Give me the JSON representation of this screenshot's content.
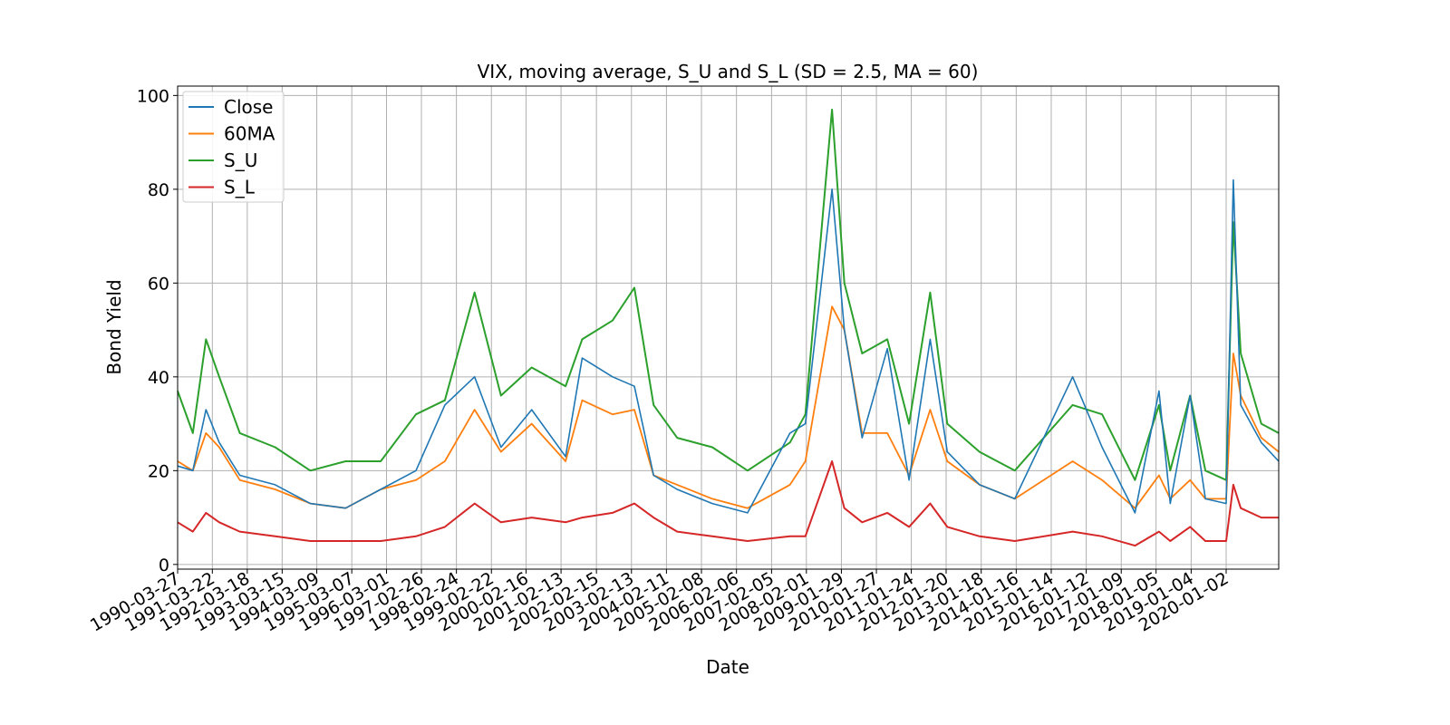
{
  "chart_data": {
    "type": "line",
    "title": "VIX, moving average, S_U and S_L (SD = 2.5, MA = 60)",
    "xlabel": "Date",
    "ylabel": "Bond Yield",
    "x_range": [
      "1990-03-27",
      "2021-06-30"
    ],
    "ylim": [
      -1,
      102
    ],
    "grid": true,
    "legend_position": "top-left",
    "x_ticks": [
      "1990-03-27",
      "1991-03-22",
      "1992-03-18",
      "1993-03-15",
      "1994-03-09",
      "1995-03-07",
      "1996-03-01",
      "1997-02-26",
      "1998-02-24",
      "1999-02-22",
      "2000-02-16",
      "2001-02-13",
      "2002-02-15",
      "2003-02-13",
      "2004-02-11",
      "2005-02-08",
      "2006-02-06",
      "2007-02-05",
      "2008-02-01",
      "2009-01-29",
      "2010-01-27",
      "2011-01-24",
      "2012-01-20",
      "2013-01-18",
      "2014-01-16",
      "2015-01-14",
      "2016-01-12",
      "2017-01-09",
      "2018-01-05",
      "2019-01-04",
      "2020-01-02"
    ],
    "y_ticks": [
      0,
      20,
      40,
      60,
      80,
      100
    ],
    "x": [
      "1990-03-27",
      "1990-09-01",
      "1991-01-15",
      "1991-06-01",
      "1992-01-01",
      "1993-01-01",
      "1994-01-01",
      "1995-01-01",
      "1996-01-01",
      "1997-01-01",
      "1997-10-27",
      "1998-09-01",
      "1999-06-01",
      "2000-04-15",
      "2001-04-01",
      "2001-09-20",
      "2002-08-01",
      "2003-03-15",
      "2003-10-01",
      "2004-06-01",
      "2005-06-01",
      "2006-06-01",
      "2007-08-15",
      "2008-01-22",
      "2008-10-24",
      "2009-03-01",
      "2009-09-01",
      "2010-05-20",
      "2011-01-01",
      "2011-08-08",
      "2012-02-01",
      "2013-01-01",
      "2014-01-01",
      "2015-08-24",
      "2016-06-24",
      "2017-06-01",
      "2018-02-05",
      "2018-06-01",
      "2018-12-24",
      "2019-06-01",
      "2020-01-02",
      "2020-03-16",
      "2020-06-01",
      "2021-01-01",
      "2021-06-30"
    ],
    "series": [
      {
        "name": "Close",
        "color": "#1f77b4",
        "values": [
          21,
          20,
          33,
          26,
          19,
          17,
          13,
          12,
          16,
          20,
          34,
          40,
          25,
          33,
          23,
          44,
          40,
          38,
          19,
          16,
          13,
          11,
          28,
          30,
          80,
          50,
          27,
          46,
          18,
          48,
          24,
          17,
          14,
          40,
          25,
          11,
          37,
          13,
          36,
          14,
          13,
          82,
          34,
          26,
          22
        ]
      },
      {
        "name": "60MA",
        "color": "#ff7f0e",
        "values": [
          22,
          20,
          28,
          25,
          18,
          16,
          13,
          12,
          16,
          18,
          22,
          33,
          24,
          30,
          22,
          35,
          32,
          33,
          19,
          17,
          14,
          12,
          17,
          22,
          55,
          50,
          28,
          28,
          19,
          33,
          22,
          17,
          14,
          22,
          18,
          12,
          19,
          14,
          18,
          14,
          14,
          45,
          36,
          27,
          24
        ]
      },
      {
        "name": "S_U",
        "color": "#2ca02c",
        "values": [
          37,
          28,
          48,
          40,
          28,
          25,
          20,
          22,
          22,
          32,
          35,
          58,
          36,
          42,
          38,
          48,
          52,
          59,
          34,
          27,
          25,
          20,
          26,
          32,
          97,
          60,
          45,
          48,
          30,
          58,
          30,
          24,
          20,
          34,
          32,
          18,
          34,
          20,
          36,
          20,
          18,
          73,
          45,
          30,
          28
        ]
      },
      {
        "name": "S_L",
        "color": "#d62728",
        "values": [
          9,
          7,
          11,
          9,
          7,
          6,
          5,
          5,
          5,
          6,
          8,
          13,
          9,
          10,
          9,
          10,
          11,
          13,
          10,
          7,
          6,
          5,
          6,
          6,
          22,
          12,
          9,
          11,
          8,
          13,
          8,
          6,
          5,
          7,
          6,
          4,
          7,
          5,
          8,
          5,
          5,
          17,
          12,
          10,
          10
        ]
      }
    ]
  }
}
